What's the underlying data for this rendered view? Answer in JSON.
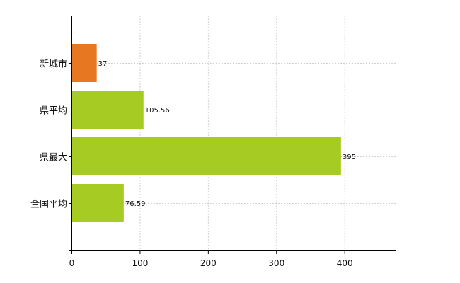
{
  "chart_data": {
    "type": "bar",
    "orientation": "horizontal",
    "categories": [
      "新城市",
      "県平均",
      "県最大",
      "全国平均"
    ],
    "values": [
      37,
      105.56,
      395,
      76.59
    ],
    "value_labels": [
      "37",
      "105.56",
      "395",
      "76.59"
    ],
    "bar_colors": [
      "#e87722",
      "#a6cc23",
      "#a6cc23",
      "#a6cc23"
    ],
    "xlim": [
      0,
      475
    ],
    "x_ticks": [
      0,
      100,
      200,
      300,
      400
    ],
    "x_tick_labels": [
      "0",
      "100",
      "200",
      "300",
      "400"
    ],
    "grid": true,
    "title": "",
    "xlabel": "",
    "ylabel": ""
  }
}
